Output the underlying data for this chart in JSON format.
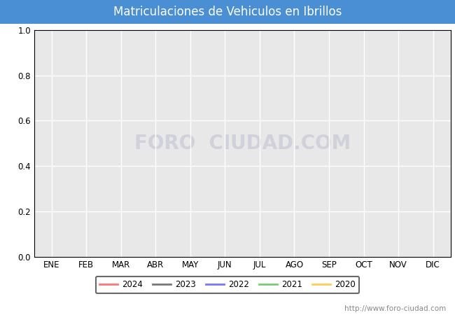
{
  "title": "Matriculaciones de Vehiculos en Ibrillos",
  "title_bg_color": "#4a8fd4",
  "title_text_color": "#ffffff",
  "plot_bg_color": "#e8e8e8",
  "chart_bg_color": "#ffffff",
  "months": [
    "ENE",
    "FEB",
    "MAR",
    "ABR",
    "MAY",
    "JUN",
    "JUL",
    "AGO",
    "SEP",
    "OCT",
    "NOV",
    "DIC"
  ],
  "ylim": [
    0.0,
    1.0
  ],
  "yticks": [
    0.0,
    0.2,
    0.4,
    0.6,
    0.8,
    1.0
  ],
  "grid_color": "#ffffff",
  "series": [
    {
      "year": "2024",
      "color": "#ff7777",
      "data": []
    },
    {
      "year": "2023",
      "color": "#777777",
      "data": []
    },
    {
      "year": "2022",
      "color": "#7777ff",
      "data": []
    },
    {
      "year": "2021",
      "color": "#77cc77",
      "data": []
    },
    {
      "year": "2020",
      "color": "#ffcc55",
      "data": []
    }
  ],
  "watermark": "FORO  CIUDAD.COM",
  "watermark_color": "#c8c8d8",
  "url_text": "http://www.foro-ciudad.com",
  "url_color": "#888888",
  "legend_edge_color": "#444444",
  "axis_label_fontsize": 8.5,
  "title_fontsize": 12,
  "url_fontsize": 7.5
}
